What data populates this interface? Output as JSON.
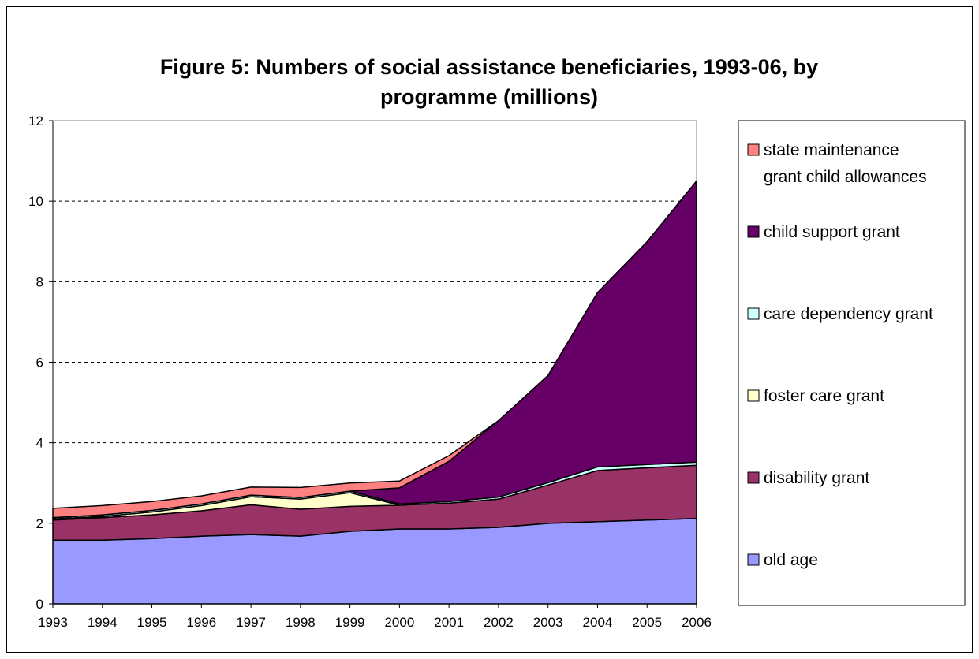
{
  "chart_data": {
    "type": "area",
    "stacked": true,
    "title": "Figure 5: Numbers of social assistance beneficiaries, 1993-06, by programme (millions)",
    "title_lines": [
      "Figure 5: Numbers of social assistance beneficiaries, 1993-06, by",
      "programme (millions)"
    ],
    "xlabel": "",
    "ylabel": "",
    "x": [
      "1993",
      "1994",
      "1995",
      "1996",
      "1997",
      "1998",
      "1999",
      "2000",
      "2001",
      "2002",
      "2003",
      "2004",
      "2005",
      "2006"
    ],
    "ylim": [
      0,
      12
    ],
    "yticks": [
      "0",
      "2",
      "4",
      "6",
      "8",
      "10",
      "12"
    ],
    "grid": "horizontal dashed",
    "legend_position": "right",
    "series": [
      {
        "name": "old age",
        "color": "#9999ff",
        "values": [
          1.58,
          1.58,
          1.62,
          1.68,
          1.72,
          1.68,
          1.8,
          1.86,
          1.86,
          1.9,
          2.0,
          2.04,
          2.08,
          2.12
        ]
      },
      {
        "name": "disability grant",
        "color": "#993366",
        "values": [
          0.5,
          0.56,
          0.59,
          0.63,
          0.74,
          0.67,
          0.62,
          0.59,
          0.64,
          0.7,
          0.95,
          1.27,
          1.3,
          1.32
        ]
      },
      {
        "name": "foster care grant",
        "color": "#ffffcc",
        "values": [
          0.03,
          0.03,
          0.07,
          0.13,
          0.2,
          0.25,
          0.34,
          0.0,
          0.0,
          0.0,
          0.0,
          0.0,
          0.0,
          0.0
        ]
      },
      {
        "name": "care dependency grant",
        "color": "#ccffff",
        "values": [
          0.03,
          0.04,
          0.04,
          0.04,
          0.04,
          0.04,
          0.04,
          0.03,
          0.04,
          0.05,
          0.06,
          0.09,
          0.08,
          0.08
        ]
      },
      {
        "name": "child support grant",
        "color": "#660066",
        "values": [
          0.0,
          0.0,
          0.0,
          0.0,
          0.0,
          0.0,
          0.0,
          0.4,
          1.0,
          1.9,
          2.66,
          4.33,
          5.53,
          6.98
        ]
      },
      {
        "name": "state maintenance grant child allowances",
        "color": "#ff8080",
        "values": [
          0.23,
          0.23,
          0.22,
          0.2,
          0.2,
          0.25,
          0.2,
          0.17,
          0.14,
          0.0,
          0.0,
          0.0,
          0.0,
          0.0
        ]
      }
    ],
    "legend_order": [
      "state maintenance grant child allowances",
      "child support grant",
      "care dependency grant",
      "foster care grant",
      "disability grant",
      "old age"
    ],
    "legend_lines": {
      "state maintenance grant child allowances": [
        "state maintenance",
        "grant child allowances"
      ]
    }
  }
}
